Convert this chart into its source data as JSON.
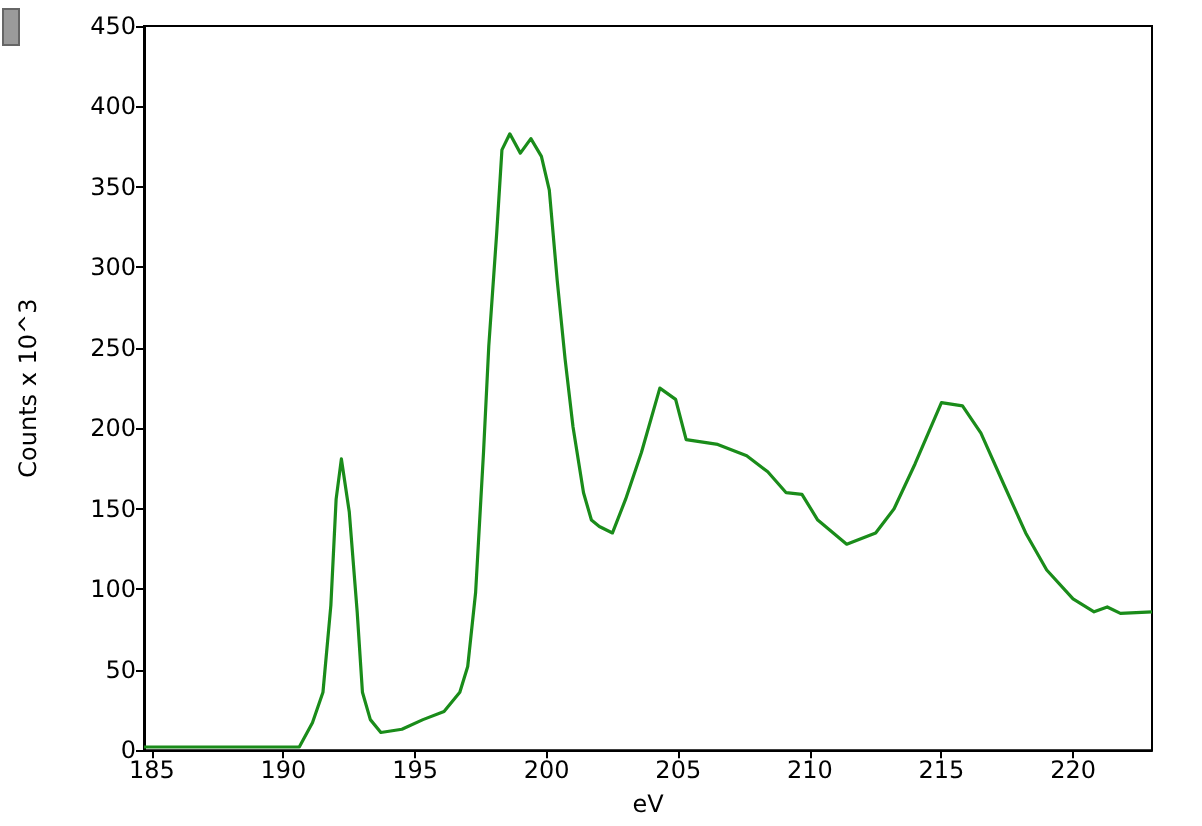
{
  "chart_data": {
    "type": "line",
    "xlabel": "eV",
    "ylabel": "Counts x 10^3",
    "x": [
      184.7,
      190.6,
      191.1,
      191.5,
      191.8,
      192.0,
      192.2,
      192.5,
      192.8,
      193.0,
      193.3,
      193.7,
      194.5,
      195.3,
      196.1,
      196.7,
      197.0,
      197.3,
      197.6,
      197.8,
      198.1,
      198.3,
      198.6,
      199.0,
      199.4,
      199.8,
      200.1,
      200.4,
      200.7,
      201.0,
      201.4,
      201.7,
      202.0,
      202.5,
      203.0,
      203.6,
      204.3,
      204.9,
      205.3,
      206.5,
      207.6,
      208.4,
      209.1,
      209.7,
      210.3,
      211.4,
      212.5,
      213.2,
      214.0,
      215.0,
      215.8,
      216.5,
      217.4,
      218.2,
      219.0,
      220.0,
      220.8,
      221.3,
      221.8,
      223.0
    ],
    "series": [
      {
        "color": "#1a8c1a",
        "values": [
          2,
          2,
          17,
          36,
          90,
          156,
          181,
          148,
          86,
          36,
          19,
          11,
          13,
          19,
          24,
          36,
          52,
          98,
          185,
          251,
          321,
          373,
          383,
          371,
          380,
          369,
          348,
          292,
          243,
          201,
          160,
          143,
          139,
          135,
          156,
          185,
          225,
          218,
          193,
          190,
          183,
          173,
          160,
          159,
          143,
          128,
          135,
          150,
          178,
          216,
          214,
          197,
          164,
          135,
          112,
          94,
          86,
          89,
          85,
          86
        ]
      }
    ],
    "xlim": [
      184.7,
      223
    ],
    "xticks": [
      185,
      190,
      195,
      200,
      205,
      210,
      215,
      220
    ],
    "ylim": [
      0,
      450
    ],
    "yticks": [
      0,
      50,
      100,
      150,
      200,
      250,
      300,
      350,
      400,
      450
    ],
    "grid": false,
    "marker": "none",
    "line_style": "solid"
  }
}
